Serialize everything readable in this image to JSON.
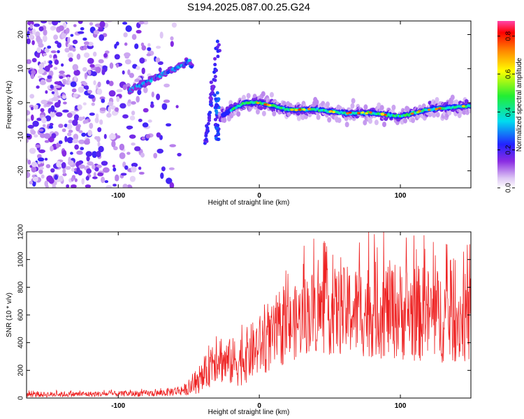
{
  "title": "S194.2025.087.00.25.G24",
  "chart_data": [
    {
      "type": "heatmap",
      "xlabel": "Height of straight line (km)",
      "ylabel": "Frequency (Hz)",
      "xlim": [
        -165,
        150
      ],
      "ylim": [
        -25,
        24
      ],
      "x_ticks": [
        -100,
        0,
        100
      ],
      "y_ticks": [
        -20,
        -10,
        0,
        10,
        20
      ],
      "grid": false,
      "ridge": [
        {
          "x": -90,
          "y": 4
        },
        {
          "x": -80,
          "y": 6
        },
        {
          "x": -70,
          "y": 8
        },
        {
          "x": -60,
          "y": 10
        },
        {
          "x": -50,
          "y": 12
        },
        {
          "x": -30,
          "y": -5
        },
        {
          "x": -20,
          "y": -2
        },
        {
          "x": -10,
          "y": 0
        },
        {
          "x": 0,
          "y": 0
        },
        {
          "x": 20,
          "y": -2
        },
        {
          "x": 40,
          "y": -2
        },
        {
          "x": 60,
          "y": -3
        },
        {
          "x": 80,
          "y": -3
        },
        {
          "x": 100,
          "y": -4
        },
        {
          "x": 120,
          "y": -2
        },
        {
          "x": 145,
          "y": -1
        }
      ]
    },
    {
      "type": "line",
      "xlabel": "Height of straight line (km)",
      "ylabel": "SNR (10 * v/v)",
      "xlim": [
        -165,
        150
      ],
      "ylim": [
        0,
        1200
      ],
      "x_ticks": [
        -100,
        0,
        100
      ],
      "y_ticks": [
        0,
        200,
        400,
        600,
        800,
        1000,
        1200
      ],
      "grid": false,
      "series": [
        {
          "color": "#ee2222",
          "envelope": [
            {
              "x": -165,
              "low": 5,
              "high": 45
            },
            {
              "x": -100,
              "low": 10,
              "high": 50
            },
            {
              "x": -70,
              "low": 10,
              "high": 60
            },
            {
              "x": -50,
              "low": 20,
              "high": 110
            },
            {
              "x": -40,
              "low": 40,
              "high": 220
            },
            {
              "x": -35,
              "low": 80,
              "high": 420
            },
            {
              "x": -30,
              "low": 120,
              "high": 560
            },
            {
              "x": -25,
              "low": 90,
              "high": 420
            },
            {
              "x": -15,
              "low": 80,
              "high": 450
            },
            {
              "x": 0,
              "low": 150,
              "high": 600
            },
            {
              "x": 20,
              "low": 250,
              "high": 750
            },
            {
              "x": 35,
              "low": 320,
              "high": 920
            },
            {
              "x": 60,
              "low": 300,
              "high": 950
            },
            {
              "x": 90,
              "low": 280,
              "high": 1000
            },
            {
              "x": 120,
              "low": 250,
              "high": 950
            },
            {
              "x": 150,
              "low": 250,
              "high": 900
            }
          ]
        }
      ]
    }
  ],
  "colorbar": {
    "label": "Normalized spectral amplitude",
    "ticks": [
      "0.0",
      "0.2",
      "0.4",
      "0.6",
      "0.8"
    ],
    "range": [
      0,
      0.88
    ]
  }
}
